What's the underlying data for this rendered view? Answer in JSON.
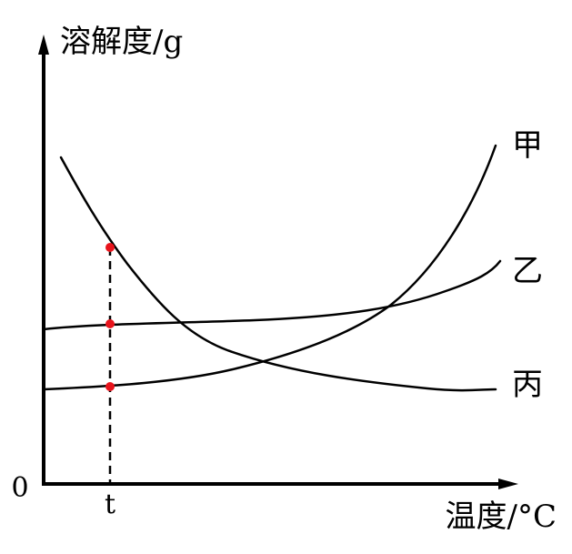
{
  "axes": {
    "y_label": "溶解度/g",
    "x_label": "温度/°C",
    "origin": "0",
    "x_tick": "t"
  },
  "curves": {
    "jia": "甲",
    "yi": "乙",
    "bing": "丙"
  }
}
